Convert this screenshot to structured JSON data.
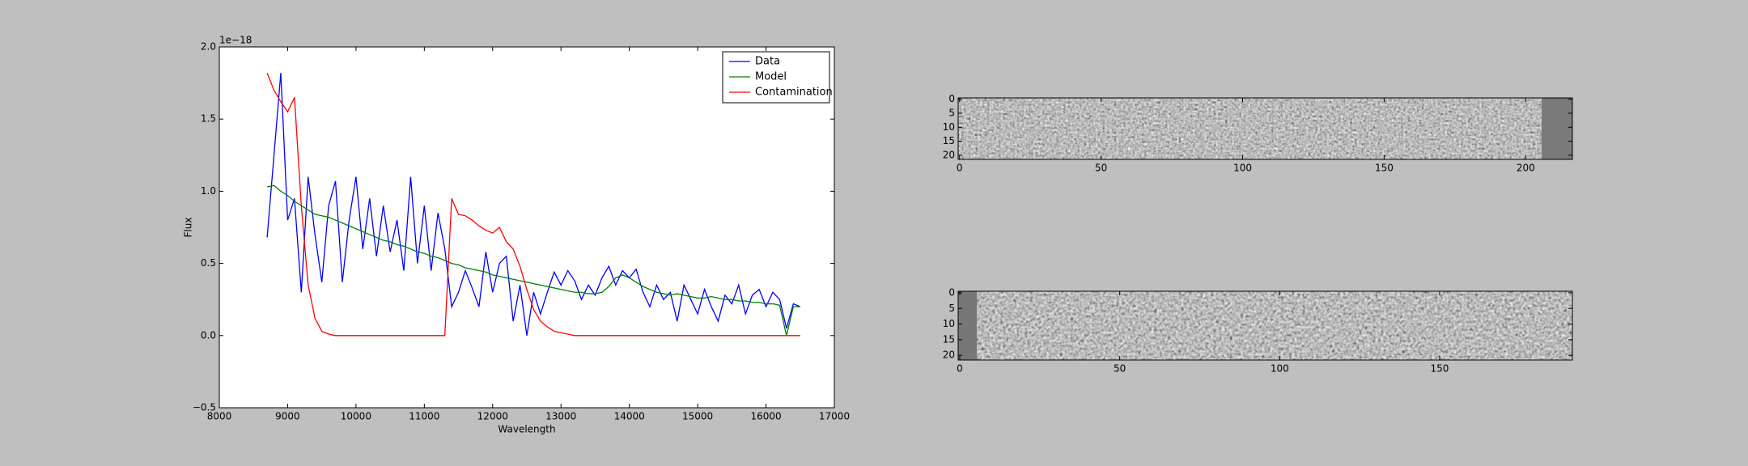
{
  "chart_data": [
    {
      "type": "line",
      "xlabel": "Wavelength",
      "ylabel": "Flux",
      "offset_label": "1e−18",
      "xlim": [
        8000,
        17000
      ],
      "xticks": [
        8000,
        9000,
        10000,
        11000,
        12000,
        13000,
        14000,
        15000,
        16000,
        17000
      ],
      "ylim": [
        -0.5,
        2.0
      ],
      "yticks": [
        {
          "value": -0.5,
          "label": "−0.5"
        },
        {
          "value": 0,
          "label": "0.0"
        },
        {
          "value": 0.5,
          "label": "0.5"
        },
        {
          "value": 1,
          "label": "1.0"
        },
        {
          "value": 1.5,
          "label": "1.5"
        },
        {
          "value": 2,
          "label": "2.0"
        }
      ],
      "legend": "upper right",
      "x": [
        8700,
        8800,
        8900,
        9000,
        9100,
        9200,
        9300,
        9400,
        9500,
        9600,
        9700,
        9800,
        9900,
        10000,
        10100,
        10200,
        10300,
        10400,
        10500,
        10600,
        10700,
        10800,
        10900,
        11000,
        11100,
        11200,
        11300,
        11400,
        11500,
        11600,
        11700,
        11800,
        11900,
        12000,
        12100,
        12200,
        12300,
        12400,
        12500,
        12600,
        12700,
        12800,
        12900,
        13000,
        13100,
        13200,
        13300,
        13400,
        13500,
        13600,
        13700,
        13800,
        13900,
        14000,
        14100,
        14200,
        14300,
        14400,
        14500,
        14600,
        14700,
        14800,
        14900,
        15000,
        15100,
        15200,
        15300,
        15400,
        15500,
        15600,
        15700,
        15800,
        15900,
        16000,
        16100,
        16200,
        16300,
        16400,
        16500
      ],
      "series": [
        {
          "name": "Data",
          "color": "#0000ff",
          "values": [
            0.68,
            1.25,
            1.82,
            0.8,
            0.95,
            0.3,
            1.1,
            0.7,
            0.37,
            0.9,
            1.07,
            0.37,
            0.8,
            1.1,
            0.6,
            0.95,
            0.55,
            0.9,
            0.58,
            0.8,
            0.45,
            1.1,
            0.5,
            0.9,
            0.45,
            0.85,
            0.6,
            0.2,
            0.3,
            0.45,
            0.33,
            0.2,
            0.58,
            0.3,
            0.5,
            0.55,
            0.1,
            0.35,
            0.0,
            0.3,
            0.15,
            0.3,
            0.44,
            0.35,
            0.45,
            0.38,
            0.25,
            0.35,
            0.28,
            0.4,
            0.48,
            0.35,
            0.45,
            0.4,
            0.46,
            0.3,
            0.2,
            0.35,
            0.25,
            0.3,
            0.1,
            0.35,
            0.25,
            0.15,
            0.32,
            0.2,
            0.1,
            0.28,
            0.22,
            0.35,
            0.15,
            0.28,
            0.32,
            0.2,
            0.3,
            0.25,
            0.05,
            0.22,
            0.2
          ]
        },
        {
          "name": "Model",
          "color": "#008000",
          "values": [
            1.03,
            1.04,
            1.0,
            0.97,
            0.93,
            0.9,
            0.87,
            0.84,
            0.83,
            0.82,
            0.8,
            0.78,
            0.76,
            0.74,
            0.72,
            0.7,
            0.68,
            0.66,
            0.65,
            0.63,
            0.62,
            0.6,
            0.58,
            0.57,
            0.55,
            0.54,
            0.52,
            0.5,
            0.49,
            0.47,
            0.46,
            0.45,
            0.44,
            0.42,
            0.41,
            0.4,
            0.39,
            0.38,
            0.37,
            0.36,
            0.35,
            0.34,
            0.33,
            0.32,
            0.31,
            0.3,
            0.3,
            0.29,
            0.29,
            0.3,
            0.34,
            0.4,
            0.42,
            0.4,
            0.37,
            0.34,
            0.32,
            0.3,
            0.29,
            0.28,
            0.29,
            0.28,
            0.27,
            0.26,
            0.26,
            0.27,
            0.26,
            0.25,
            0.25,
            0.24,
            0.24,
            0.23,
            0.23,
            0.22,
            0.22,
            0.21,
            0.0,
            0.2,
            0.2
          ]
        },
        {
          "name": "Contamination",
          "color": "#ff0000",
          "values": [
            1.82,
            1.7,
            1.62,
            1.55,
            1.65,
            0.9,
            0.35,
            0.12,
            0.03,
            0.01,
            0,
            0,
            0,
            0,
            0,
            0,
            0,
            0,
            0,
            0,
            0,
            0,
            0,
            0,
            0,
            0,
            0,
            0.95,
            0.84,
            0.83,
            0.8,
            0.76,
            0.73,
            0.71,
            0.75,
            0.65,
            0.6,
            0.48,
            0.32,
            0.18,
            0.1,
            0.06,
            0.03,
            0.02,
            0.01,
            0,
            0,
            0,
            0,
            0,
            0,
            0,
            0,
            0,
            0,
            0,
            0,
            0,
            0,
            0,
            0,
            0,
            0,
            0,
            0,
            0,
            0,
            0,
            0,
            0,
            0,
            0,
            0,
            0,
            0,
            0,
            0,
            0,
            0
          ]
        }
      ]
    },
    {
      "type": "image",
      "xlim": [
        -0.5,
        216.5
      ],
      "ylim": [
        21.5,
        -0.5
      ],
      "xticks": [
        0,
        50,
        100,
        150,
        200
      ],
      "yticks": [
        0,
        5,
        10,
        15,
        20
      ]
    },
    {
      "type": "image",
      "xlim": [
        -0.5,
        191.5
      ],
      "ylim": [
        21.5,
        -0.5
      ],
      "xticks": [
        0,
        50,
        100,
        150
      ],
      "yticks": [
        0,
        5,
        10,
        15,
        20
      ]
    }
  ]
}
